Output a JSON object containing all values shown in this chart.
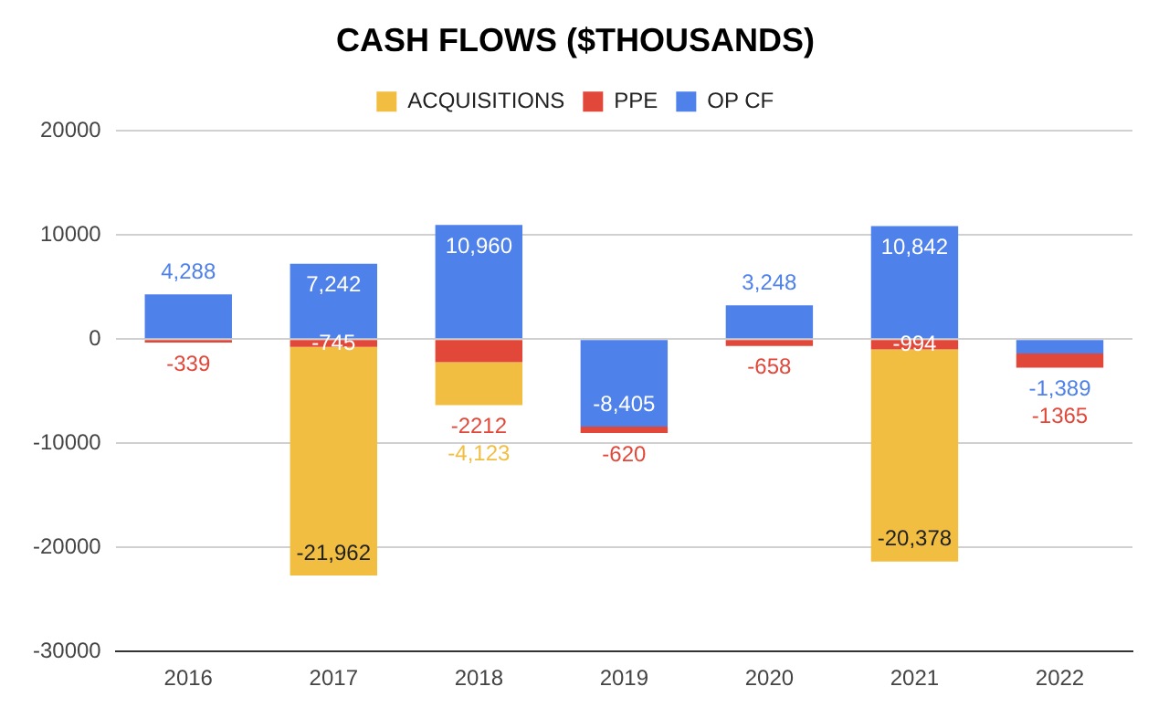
{
  "chart_data": {
    "type": "bar",
    "title": "CASH FLOWS ($THOUSANDS)",
    "stacked": true,
    "categories": [
      "2016",
      "2017",
      "2018",
      "2019",
      "2020",
      "2021",
      "2022"
    ],
    "series": [
      {
        "name": "OP CF",
        "color": "#4f81ea",
        "values": [
          4288,
          7242,
          10960,
          -8405,
          3248,
          10842,
          -1389
        ],
        "value_labels": [
          "4,288",
          "7,242",
          "10,960",
          "-8,405",
          "3,248",
          "10,842",
          "-1,389"
        ]
      },
      {
        "name": "PPE",
        "color": "#e2483a",
        "values": [
          -339,
          -745,
          -2212,
          -620,
          -658,
          -994,
          -1365
        ],
        "value_labels": [
          "-339",
          "-745",
          "-2212",
          "-620",
          "-658",
          "-994",
          "-1365"
        ]
      },
      {
        "name": "ACQUISITIONS",
        "color": "#f1be42",
        "values": [
          null,
          -21962,
          -4123,
          null,
          null,
          -20378,
          null
        ],
        "value_labels": [
          null,
          "-21,962",
          "-4,123",
          null,
          null,
          "-20,378",
          null
        ]
      }
    ],
    "ylim": [
      -30000,
      20000
    ],
    "yticks": [
      -30000,
      -20000,
      -10000,
      0,
      10000,
      20000
    ],
    "grid": "y",
    "legend": "top"
  }
}
